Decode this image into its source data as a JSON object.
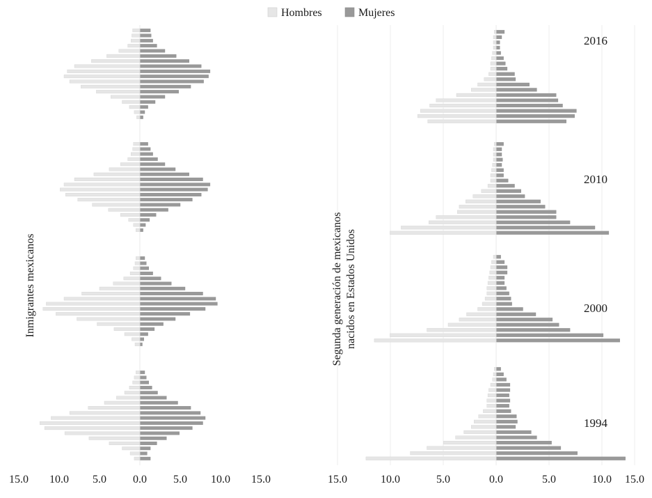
{
  "chart_data": {
    "type": "bar",
    "legend": {
      "placement": "top-center",
      "entries": [
        {
          "name": "Hombres",
          "color": "#e6e6e6"
        },
        {
          "name": "Mujeres",
          "color": "#999999"
        }
      ]
    },
    "panels": [
      {
        "ylabel": "Inmigrantes mexicanos",
        "xlim": [
          -15,
          15
        ],
        "x_ticks": [
          "15.0",
          "10.0",
          "5.0",
          "0.0",
          "5.0",
          "10.0",
          "15.0"
        ],
        "grid": false,
        "subplots": [
          {
            "year": "",
            "series": [
              {
                "name": "Hombres",
                "values": [
                  0.9,
                  1.0,
                  1.1,
                  1.5,
                  2.6,
                  4.1,
                  6.0,
                  8.1,
                  9.0,
                  9.4,
                  8.7,
                  7.3,
                  5.4,
                  3.6,
                  2.2,
                  1.3,
                  0.7,
                  0.4
                ]
              },
              {
                "name": "Mujeres",
                "values": [
                  1.3,
                  1.4,
                  1.6,
                  2.1,
                  3.1,
                  4.5,
                  6.1,
                  7.6,
                  8.7,
                  8.5,
                  7.9,
                  6.3,
                  4.8,
                  3.1,
                  1.9,
                  1.0,
                  0.6,
                  0.4
                ]
              }
            ]
          },
          {
            "year": "",
            "series": [
              {
                "name": "Hombres",
                "values": [
                  0.8,
                  0.9,
                  1.1,
                  1.5,
                  2.4,
                  3.8,
                  5.7,
                  8.1,
                  9.4,
                  9.9,
                  9.2,
                  7.7,
                  5.9,
                  3.9,
                  2.4,
                  1.4,
                  0.8,
                  0.5
                ]
              },
              {
                "name": "Mujeres",
                "values": [
                  1.0,
                  1.3,
                  1.6,
                  2.2,
                  3.1,
                  4.4,
                  6.1,
                  7.8,
                  8.7,
                  8.4,
                  7.6,
                  6.5,
                  5.0,
                  3.5,
                  2.0,
                  1.2,
                  0.7,
                  0.4
                ]
              }
            ]
          },
          {
            "year": "",
            "series": [
              {
                "name": "Hombres",
                "values": [
                  0.5,
                  0.6,
                  0.8,
                  1.2,
                  2.0,
                  3.3,
                  5.0,
                  7.2,
                  9.4,
                  11.6,
                  12.0,
                  10.4,
                  7.8,
                  5.3,
                  3.2,
                  1.9,
                  1.0,
                  0.6
                ]
              },
              {
                "name": "Mujeres",
                "values": [
                  0.6,
                  0.8,
                  1.1,
                  1.6,
                  2.6,
                  3.9,
                  5.6,
                  7.8,
                  9.4,
                  9.6,
                  8.1,
                  6.2,
                  4.4,
                  2.9,
                  1.8,
                  1.0,
                  0.5,
                  0.3
                ]
              }
            ]
          },
          {
            "year": "",
            "series": [
              {
                "name": "Hombres",
                "values": [
                  0.5,
                  0.7,
                  0.9,
                  1.3,
                  1.9,
                  2.9,
                  4.4,
                  6.4,
                  8.7,
                  11.0,
                  12.4,
                  11.8,
                  9.3,
                  6.3,
                  3.8,
                  2.2,
                  1.2,
                  0.7
                ]
              },
              {
                "name": "Mujeres",
                "values": [
                  0.6,
                  0.8,
                  1.1,
                  1.5,
                  2.2,
                  3.3,
                  4.7,
                  6.3,
                  7.5,
                  8.1,
                  7.8,
                  6.5,
                  4.9,
                  3.3,
                  2.1,
                  1.3,
                  0.9,
                  1.3
                ]
              }
            ]
          }
        ]
      },
      {
        "ylabel_lines": [
          "Segunda generación de mexicanos",
          "nacidos en Estados Unidos"
        ],
        "xlim": [
          -15,
          15
        ],
        "x_ticks": [
          "15.0",
          "10.0",
          "5.0",
          "0.0",
          "5.0",
          "10.0",
          "15.0"
        ],
        "grid": true,
        "subplots": [
          {
            "year": "2016",
            "series": [
              {
                "name": "Hombres",
                "values": [
                  0.2,
                  0.3,
                  0.3,
                  0.3,
                  0.4,
                  0.5,
                  0.6,
                  0.6,
                  0.8,
                  1.3,
                  2.0,
                  2.7,
                  4.3,
                  6.5,
                  7.2,
                  8.2,
                  8.5,
                  7.4
                ]
              },
              {
                "name": "Mujeres",
                "values": [
                  0.9,
                  0.6,
                  0.4,
                  0.4,
                  0.5,
                  0.8,
                  1.0,
                  1.2,
                  2.0,
                  2.1,
                  3.6,
                  4.4,
                  6.5,
                  6.7,
                  7.2,
                  8.7,
                  8.5,
                  7.6
                ]
              }
            ]
          },
          {
            "year": "2010",
            "series": [
              {
                "name": "Hombres",
                "values": [
                  0.2,
                  0.3,
                  0.3,
                  0.3,
                  0.4,
                  0.5,
                  0.6,
                  0.6,
                  0.9,
                  1.6,
                  2.5,
                  3.3,
                  4.0,
                  4.2,
                  6.5,
                  7.3,
                  10.3,
                  11.5
                ]
              },
              {
                "name": "Mujeres",
                "values": [
                  0.8,
                  0.6,
                  0.6,
                  0.7,
                  0.6,
                  0.8,
                  0.8,
                  1.3,
                  2.0,
                  2.7,
                  3.1,
                  4.8,
                  5.3,
                  6.5,
                  6.5,
                  8.0,
                  10.7,
                  12.2
                ]
              }
            ]
          },
          {
            "year": "2000",
            "series": [
              {
                "name": "Hombres",
                "values": [
                  0.3,
                  0.5,
                  0.6,
                  0.7,
                  0.8,
                  0.9,
                  1.0,
                  1.0,
                  1.2,
                  1.5,
                  2.0,
                  3.2,
                  4.0,
                  5.2,
                  7.5,
                  11.5,
                  13.2,
                  0.0
                ]
              },
              {
                "name": "Mujeres",
                "values": [
                  0.5,
                  0.9,
                  1.2,
                  1.2,
                  0.9,
                  0.9,
                  1.1,
                  1.4,
                  1.6,
                  1.7,
                  2.9,
                  4.3,
                  6.1,
                  6.8,
                  8.0,
                  11.6,
                  13.4,
                  0.0
                ]
              }
            ]
          },
          {
            "year": "1994",
            "series": [
              {
                "name": "Hombres",
                "values": [
                  0.2,
                  0.3,
                  0.4,
                  0.6,
                  0.8,
                  0.9,
                  1.0,
                  1.0,
                  1.4,
                  1.9,
                  2.4,
                  2.7,
                  3.5,
                  4.4,
                  5.7,
                  7.5,
                  9.3,
                  14.1
                ]
              },
              {
                "name": "Mujeres",
                "values": [
                  0.5,
                  0.8,
                  1.1,
                  1.5,
                  1.5,
                  1.4,
                  1.5,
                  1.4,
                  1.6,
                  2.2,
                  2.3,
                  2.1,
                  3.8,
                  4.4,
                  6.0,
                  7.0,
                  8.8,
                  14.0
                ]
              }
            ]
          }
        ]
      }
    ]
  }
}
